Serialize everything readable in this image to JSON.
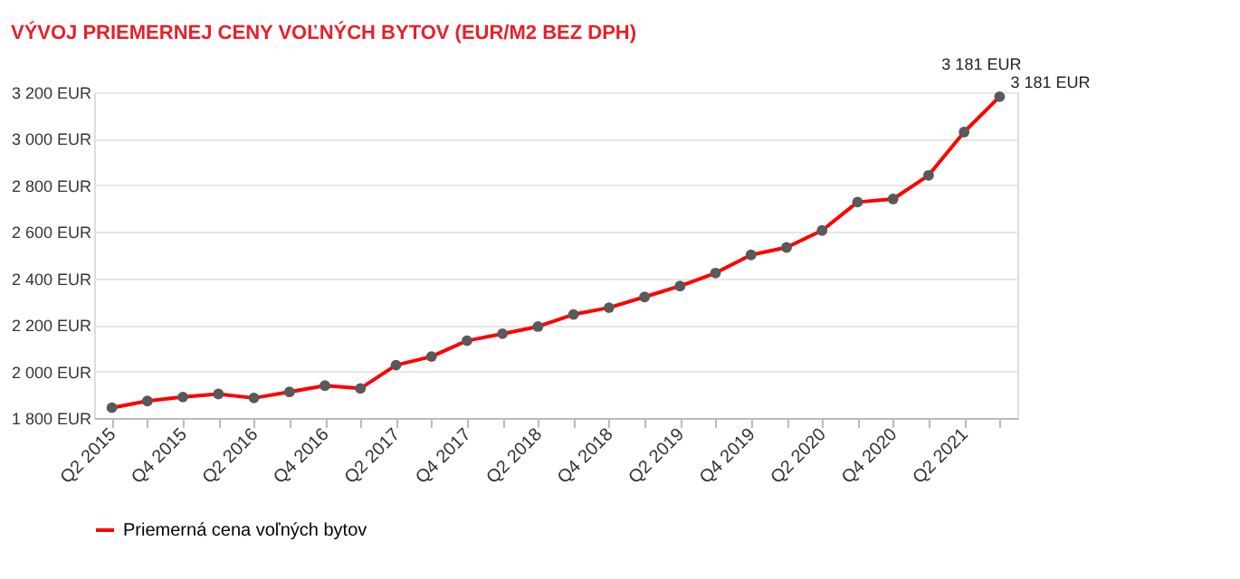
{
  "chart_data": {
    "type": "line",
    "title": "VÝVOJ PRIEMERNEJ CENY VOĽNÝCH BYTOV (EUR/M2 BEZ DPH)",
    "categories": [
      "Q2 2015",
      null,
      "Q4 2015",
      null,
      "Q2 2016",
      null,
      "Q4 2016",
      null,
      "Q2 2017",
      null,
      "Q4 2017",
      null,
      "Q2 2018",
      null,
      "Q4 2018",
      null,
      "Q2 2019",
      null,
      "Q4 2019",
      null,
      "Q2 2020",
      null,
      "Q4 2020",
      null,
      "Q2 2021",
      null
    ],
    "series": [
      {
        "name": "Priemerná cena voľných bytov",
        "color": "#ff0000",
        "values": [
          1844,
          1873,
          1890,
          1903,
          1886,
          1912,
          1939,
          1927,
          2027,
          2064,
          2132,
          2162,
          2193,
          2245,
          2274,
          2320,
          2367,
          2423,
          2501,
          2533,
          2606,
          2728,
          2741,
          2843,
          3029,
          3181
        ]
      }
    ],
    "ylim": [
      1800,
      3200
    ],
    "yticks": [
      {
        "value": 1800,
        "label": "1 800 EUR"
      },
      {
        "value": 2000,
        "label": "2 000 EUR"
      },
      {
        "value": 2200,
        "label": "2 200 EUR"
      },
      {
        "value": 2400,
        "label": "2 400 EUR"
      },
      {
        "value": 2600,
        "label": "2 600 EUR"
      },
      {
        "value": 2800,
        "label": "2 800 EUR"
      },
      {
        "value": 3000,
        "label": "3 000 EUR"
      },
      {
        "value": 3200,
        "label": "3 200 EUR"
      }
    ],
    "annotations": [
      "3 181 EUR",
      "3 181 EUR"
    ],
    "grid": "y",
    "legend": "bottom",
    "marker": "circle",
    "line_style": "solid"
  }
}
